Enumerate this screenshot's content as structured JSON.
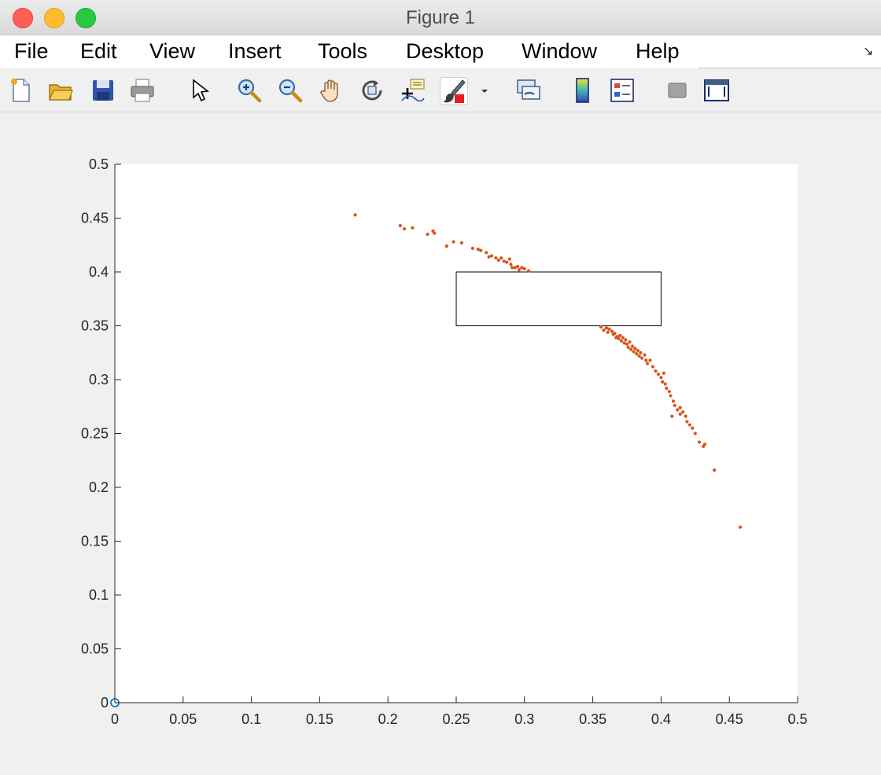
{
  "window": {
    "title": "Figure 1"
  },
  "menu": [
    "File",
    "Edit",
    "View",
    "Insert",
    "Tools",
    "Desktop",
    "Window",
    "Help"
  ],
  "toolbar": {
    "icons": [
      "new-figure-icon",
      "open-file-icon",
      "save-icon",
      "print-icon",
      "select-pointer-icon",
      "zoom-in-icon",
      "zoom-out-icon",
      "pan-hand-icon",
      "rotate-3d-icon",
      "data-cursor-icon",
      "brush-icon",
      "brush-dropdown-icon",
      "link-plot-icon",
      "colorbar-icon",
      "legend-icon",
      "hide-tools-icon",
      "show-tools-icon"
    ]
  },
  "colors": {
    "points": "#d95319",
    "origin_marker": "#0072bd"
  },
  "chart_data": {
    "type": "scatter",
    "xlim": [
      0,
      0.5
    ],
    "ylim": [
      0,
      0.5
    ],
    "xticks": [
      "0",
      "0.05",
      "0.1",
      "0.15",
      "0.2",
      "0.25",
      "0.3",
      "0.35",
      "0.4",
      "0.45",
      "0.5"
    ],
    "yticks": [
      "0",
      "0.05",
      "0.1",
      "0.15",
      "0.2",
      "0.25",
      "0.3",
      "0.35",
      "0.4",
      "0.45",
      "0.5"
    ],
    "grid": false,
    "rectangle": {
      "x": [
        0.25,
        0.4
      ],
      "y": [
        0.35,
        0.4
      ]
    },
    "series": [
      {
        "marker": "dot",
        "color": "#d95319",
        "points": [
          [
            0.176,
            0.453
          ],
          [
            0.209,
            0.443
          ],
          [
            0.212,
            0.44
          ],
          [
            0.218,
            0.441
          ],
          [
            0.229,
            0.435
          ],
          [
            0.233,
            0.438
          ],
          [
            0.234,
            0.436
          ],
          [
            0.243,
            0.424
          ],
          [
            0.248,
            0.428
          ],
          [
            0.254,
            0.427
          ],
          [
            0.262,
            0.422
          ],
          [
            0.266,
            0.421
          ],
          [
            0.268,
            0.42
          ],
          [
            0.272,
            0.418
          ],
          [
            0.274,
            0.414
          ],
          [
            0.276,
            0.415
          ],
          [
            0.279,
            0.413
          ],
          [
            0.281,
            0.411
          ],
          [
            0.283,
            0.413
          ],
          [
            0.285,
            0.41
          ],
          [
            0.287,
            0.409
          ],
          [
            0.289,
            0.412
          ],
          [
            0.29,
            0.407
          ],
          [
            0.291,
            0.404
          ],
          [
            0.293,
            0.404
          ],
          [
            0.295,
            0.405
          ],
          [
            0.296,
            0.402
          ],
          [
            0.298,
            0.404
          ],
          [
            0.3,
            0.403
          ],
          [
            0.303,
            0.401
          ],
          [
            0.356,
            0.349
          ],
          [
            0.358,
            0.346
          ],
          [
            0.36,
            0.348
          ],
          [
            0.361,
            0.344
          ],
          [
            0.362,
            0.347
          ],
          [
            0.364,
            0.345
          ],
          [
            0.365,
            0.342
          ],
          [
            0.366,
            0.343
          ],
          [
            0.367,
            0.339
          ],
          [
            0.368,
            0.34
          ],
          [
            0.369,
            0.338
          ],
          [
            0.37,
            0.341
          ],
          [
            0.371,
            0.336
          ],
          [
            0.372,
            0.339
          ],
          [
            0.373,
            0.334
          ],
          [
            0.374,
            0.337
          ],
          [
            0.375,
            0.333
          ],
          [
            0.376,
            0.33
          ],
          [
            0.377,
            0.335
          ],
          [
            0.378,
            0.328
          ],
          [
            0.379,
            0.331
          ],
          [
            0.38,
            0.326
          ],
          [
            0.381,
            0.329
          ],
          [
            0.382,
            0.324
          ],
          [
            0.383,
            0.327
          ],
          [
            0.384,
            0.322
          ],
          [
            0.385,
            0.325
          ],
          [
            0.386,
            0.32
          ],
          [
            0.388,
            0.323
          ],
          [
            0.389,
            0.318
          ],
          [
            0.39,
            0.315
          ],
          [
            0.392,
            0.318
          ],
          [
            0.394,
            0.312
          ],
          [
            0.396,
            0.308
          ],
          [
            0.398,
            0.305
          ],
          [
            0.4,
            0.302
          ],
          [
            0.401,
            0.298
          ],
          [
            0.403,
            0.296
          ],
          [
            0.404,
            0.292
          ],
          [
            0.406,
            0.289
          ],
          [
            0.407,
            0.285
          ],
          [
            0.409,
            0.28
          ],
          [
            0.41,
            0.276
          ],
          [
            0.412,
            0.272
          ],
          [
            0.414,
            0.268
          ],
          [
            0.416,
            0.27
          ],
          [
            0.418,
            0.266
          ],
          [
            0.419,
            0.261
          ],
          [
            0.421,
            0.258
          ],
          [
            0.423,
            0.255
          ],
          [
            0.425,
            0.25
          ],
          [
            0.428,
            0.242
          ],
          [
            0.431,
            0.238
          ],
          [
            0.432,
            0.24
          ],
          [
            0.439,
            0.216
          ],
          [
            0.458,
            0.163
          ],
          [
            0.408,
            0.266
          ],
          [
            0.414,
            0.274
          ],
          [
            0.402,
            0.306
          ]
        ]
      },
      {
        "marker": "circle",
        "color": "#0072bd",
        "points": [
          [
            0,
            0
          ]
        ]
      }
    ]
  }
}
